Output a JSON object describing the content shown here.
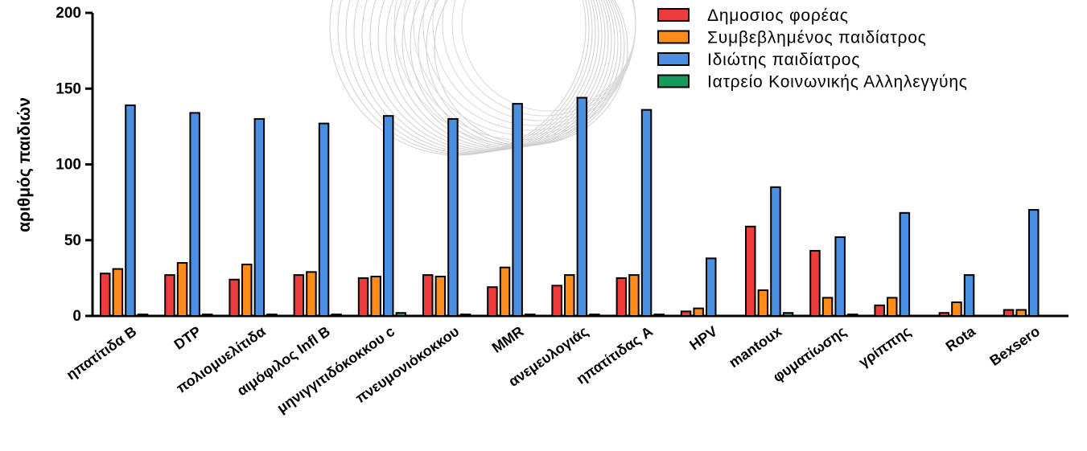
{
  "chart_data": {
    "type": "bar",
    "title": "",
    "xlabel": "",
    "ylabel": "αριθμός παιδιών",
    "ylim": [
      0,
      200
    ],
    "yticks": [
      0,
      50,
      100,
      150,
      200
    ],
    "grid": false,
    "legend_position": "top-right",
    "categories": [
      "ηπατίτιδα B",
      "DTP",
      "πολιομυελίτιδα",
      "αιμόφιλος Infl B",
      "μηνιγγιτιδόκοκκου c",
      "πνευμονιόκοκκου",
      "MMR",
      "ανεμευλογιάς",
      "ηπατίτιδας A",
      "HPV",
      "mantoux",
      "φυματίωσης",
      "γρίππης",
      "Rota",
      "Bexsero"
    ],
    "series": [
      {
        "name": "Δημοσιος φορέας",
        "color": "#ee3b3b",
        "values": [
          28,
          27,
          24,
          27,
          25,
          27,
          19,
          20,
          25,
          3,
          59,
          43,
          7,
          2,
          4
        ]
      },
      {
        "name": "Συμβεβλημένος παιδίατρος",
        "color": "#ff8c1a",
        "values": [
          31,
          35,
          34,
          29,
          26,
          26,
          32,
          27,
          27,
          5,
          17,
          12,
          12,
          9,
          4
        ]
      },
      {
        "name": "Ιδιώτης παιδίατρος",
        "color": "#4a90e2",
        "values": [
          139,
          134,
          130,
          127,
          132,
          130,
          140,
          144,
          136,
          38,
          85,
          52,
          68,
          27,
          70
        ]
      },
      {
        "name": "Ιατρείο Κοινωνικής Αλληλεγγύης",
        "color": "#149a5a",
        "values": [
          1,
          1,
          1,
          1,
          2,
          1,
          1,
          1,
          1,
          0,
          2,
          1,
          0,
          0,
          0
        ]
      }
    ]
  }
}
